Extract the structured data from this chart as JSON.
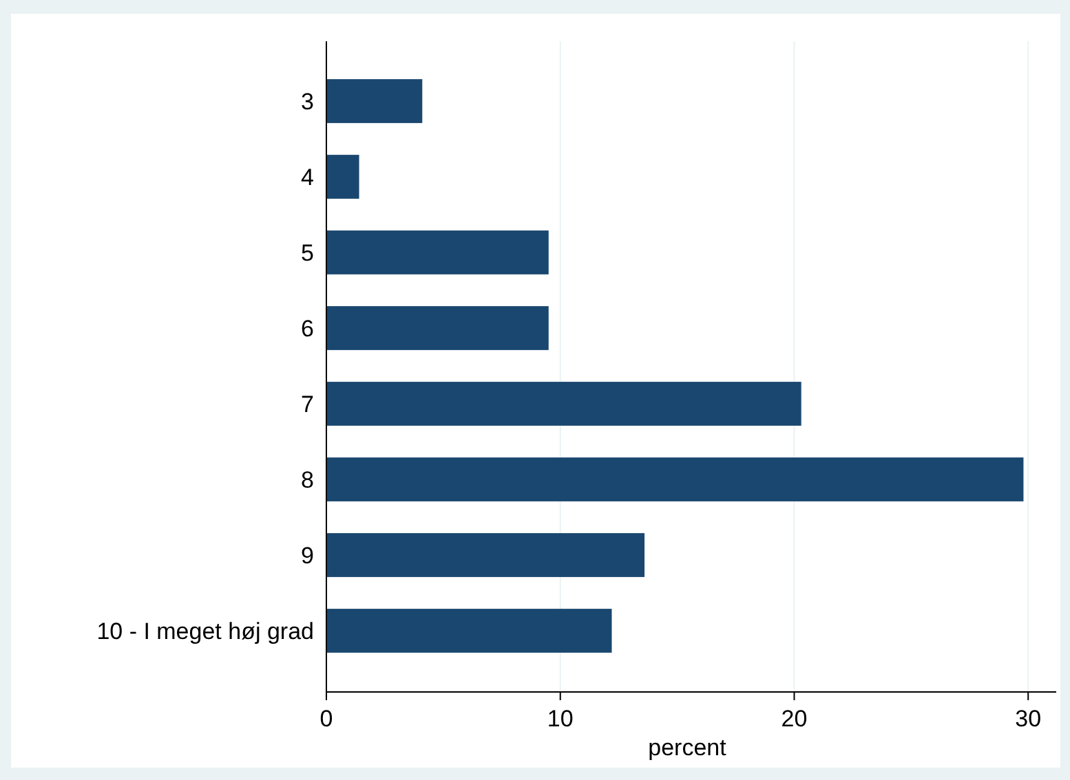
{
  "chart_data": {
    "type": "bar",
    "orientation": "horizontal",
    "categories": [
      "3",
      "4",
      "5",
      "6",
      "7",
      "8",
      "9",
      "10 - I meget høj grad"
    ],
    "values": [
      4.1,
      1.4,
      9.5,
      9.5,
      20.3,
      29.8,
      13.6,
      12.2
    ],
    "color": "#1a476f",
    "xlim": [
      0,
      31.2
    ],
    "xticks": [
      0,
      10,
      20,
      30
    ],
    "xlabel": "percent",
    "grid": "x"
  }
}
